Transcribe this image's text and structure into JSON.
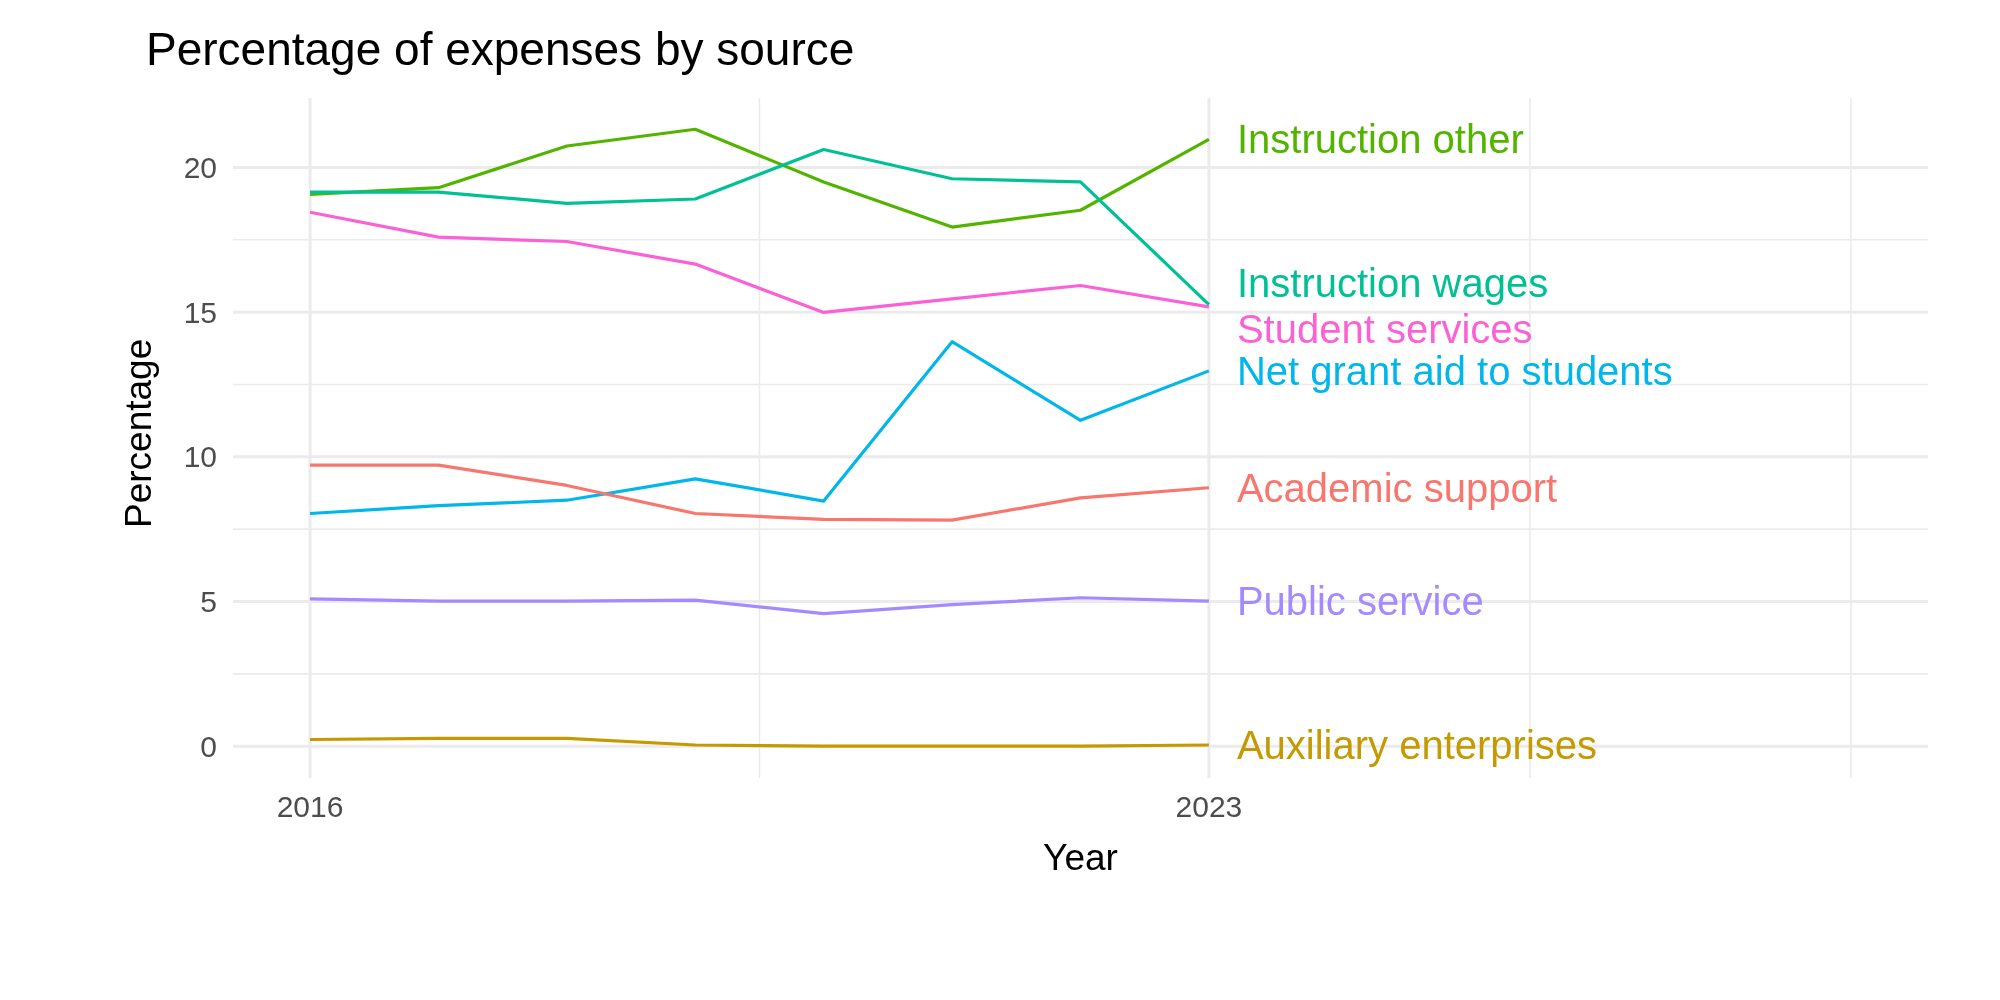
{
  "chart_data": {
    "type": "line",
    "title": "Percentage of expenses by source",
    "xlabel": "Year",
    "ylabel": "Percentage",
    "x": [
      2016,
      2017,
      2018,
      2019,
      2020,
      2021,
      2022,
      2023
    ],
    "xlim": [
      2015.4,
      2028.6
    ],
    "xticks": [
      2016,
      {
        "value": 2019.5,
        "label": null
      },
      2023,
      {
        "value": 2025.5,
        "label": null
      },
      {
        "value": 2028,
        "label": null
      }
    ],
    "ylim": [
      -1.1,
      22.4
    ],
    "yticks": [
      0,
      {
        "value": 2.5,
        "label": null
      },
      5,
      {
        "value": 7.5,
        "label": null
      },
      10,
      {
        "value": 12.5,
        "label": null
      },
      15,
      {
        "value": 17.5,
        "label": null
      },
      20
    ],
    "grid": true,
    "line_style": "solid",
    "marker": "none",
    "series": [
      {
        "name": "Instruction other",
        "color": "#53b400",
        "values": [
          19.07,
          19.3,
          20.74,
          21.32,
          19.5,
          17.94,
          18.52,
          20.97
        ]
      },
      {
        "name": "Instruction wages",
        "color": "#00c094",
        "values": [
          19.15,
          19.15,
          18.76,
          18.91,
          20.62,
          19.61,
          19.5,
          15.26
        ]
      },
      {
        "name": "Student services",
        "color": "#fb61d7",
        "values": [
          18.45,
          17.59,
          17.44,
          16.66,
          14.99,
          15.46,
          15.92,
          15.18
        ]
      },
      {
        "name": "Net grant aid to students",
        "color": "#00b6eb",
        "values": [
          8.04,
          8.31,
          8.5,
          9.24,
          8.47,
          13.98,
          11.26,
          12.97
        ]
      },
      {
        "name": "Academic support",
        "color": "#f8766d",
        "values": [
          9.71,
          9.71,
          9.01,
          8.04,
          7.84,
          7.81,
          8.58,
          8.93
        ]
      },
      {
        "name": "Public service",
        "color": "#a58aff",
        "values": [
          5.09,
          5.01,
          5.01,
          5.05,
          4.58,
          4.89,
          5.13,
          5.01
        ]
      },
      {
        "name": "Auxiliary enterprises",
        "color": "#c49a00",
        "values": [
          0.23,
          0.27,
          0.27,
          0.04,
          0,
          0,
          0,
          0.04
        ]
      }
    ]
  }
}
